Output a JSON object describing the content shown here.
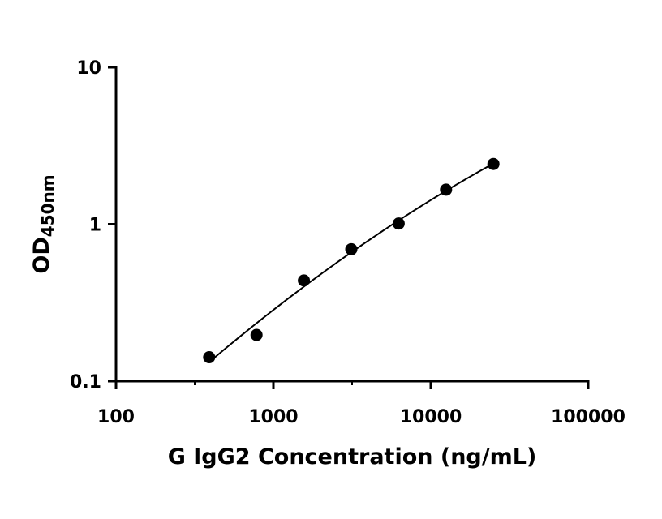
{
  "chart_data": {
    "type": "scatter",
    "title": "",
    "xlabel": "G IgG2 Concentration (ng/mL)",
    "ylabel": {
      "main": "OD",
      "subscript": "450nm"
    },
    "xscale": "log",
    "yscale": "log",
    "xlim": [
      100,
      100000
    ],
    "ylim": [
      0.1,
      10
    ],
    "xticks": [
      {
        "value": 100,
        "label": "100"
      },
      {
        "value": 1000,
        "label": "1000"
      },
      {
        "value": 10000,
        "label": "10000"
      },
      {
        "value": 100000,
        "label": "100000"
      }
    ],
    "yticks": [
      {
        "value": 0.1,
        "label": "0.1"
      },
      {
        "value": 1,
        "label": "1"
      },
      {
        "value": 10,
        "label": "10"
      }
    ],
    "grid": false,
    "legend": "none",
    "series": [
      {
        "color": "#000000",
        "marker": "filled-circle",
        "fit": "smooth curve",
        "x": [
          390.625,
          781.25,
          1562.5,
          3125,
          6250,
          12500,
          25000
        ],
        "y": [
          0.142,
          0.197,
          0.438,
          0.693,
          1.01,
          1.66,
          2.42
        ]
      }
    ]
  }
}
